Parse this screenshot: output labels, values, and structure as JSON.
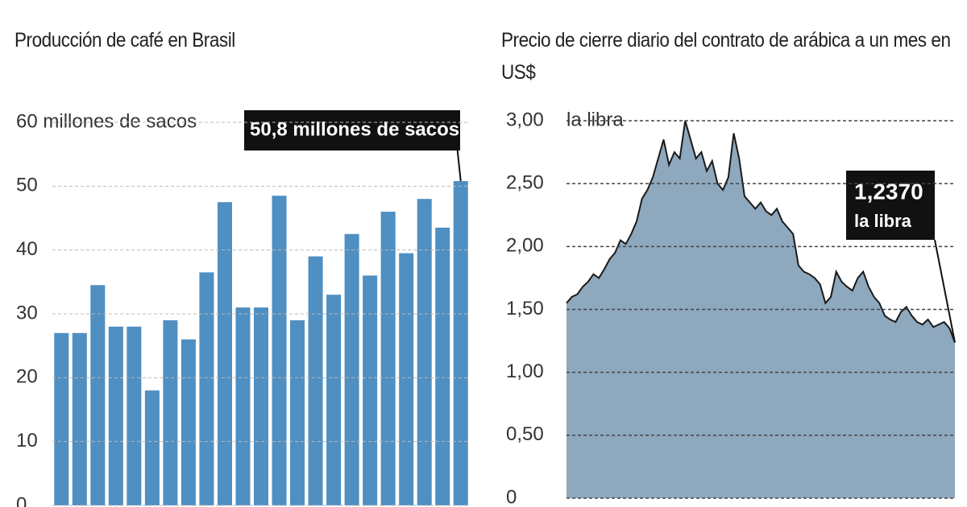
{
  "chart_data": [
    {
      "type": "bar",
      "title": "Producción de café en Brasil",
      "categories": [
        null,
        null,
        null,
        null,
        null,
        null,
        null,
        null,
        null,
        null,
        null,
        null,
        null,
        null,
        null,
        null,
        null,
        null,
        null,
        null,
        null,
        null,
        null
      ],
      "values": [
        27,
        27,
        34.5,
        28,
        28,
        18,
        29,
        26,
        36.5,
        47.5,
        31,
        31,
        48.5,
        29,
        39,
        33,
        42.5,
        36,
        46,
        39.5,
        48,
        43.5,
        50.8
      ],
      "color": "#4f8fc2",
      "ylim": [
        0,
        60
      ],
      "yticks": [
        0,
        10,
        20,
        30,
        40,
        50,
        {
          "value": 60,
          "label": "60 millones de sacos"
        }
      ],
      "grid": true,
      "annotation": "50,8 millones de sacos"
    },
    {
      "type": "area",
      "title": "Precio de cierre diario del contrato de arábica a un mes en US$",
      "values": [
        1.55,
        1.6,
        1.62,
        1.68,
        1.72,
        1.78,
        1.75,
        1.82,
        1.9,
        1.95,
        2.05,
        2.02,
        2.1,
        2.2,
        2.38,
        2.45,
        2.55,
        2.7,
        2.85,
        2.65,
        2.75,
        2.7,
        3.0,
        2.85,
        2.7,
        2.75,
        2.6,
        2.68,
        2.5,
        2.45,
        2.55,
        2.9,
        2.7,
        2.4,
        2.35,
        2.3,
        2.35,
        2.28,
        2.25,
        2.3,
        2.2,
        2.15,
        2.1,
        1.85,
        1.8,
        1.78,
        1.75,
        1.7,
        1.55,
        1.6,
        1.8,
        1.72,
        1.68,
        1.65,
        1.75,
        1.8,
        1.68,
        1.6,
        1.55,
        1.45,
        1.42,
        1.4,
        1.48,
        1.52,
        1.45,
        1.4,
        1.38,
        1.42,
        1.36,
        1.38,
        1.4,
        1.35,
        1.237
      ],
      "color": "#8ea8be",
      "ylim": [
        0,
        3
      ],
      "yticks": [
        0,
        {
          "value": 0.5,
          "label": "0,50"
        },
        {
          "value": 1,
          "label": "1,00"
        },
        {
          "value": 1.5,
          "label": "1,50"
        },
        {
          "value": 2,
          "label": "2,00"
        },
        {
          "value": 2.5,
          "label": "2,50"
        },
        {
          "value": 3,
          "label": "3,00"
        }
      ],
      "y_unit": "la libra",
      "grid": true,
      "annotation": [
        "1,2370",
        "la libra"
      ]
    }
  ]
}
